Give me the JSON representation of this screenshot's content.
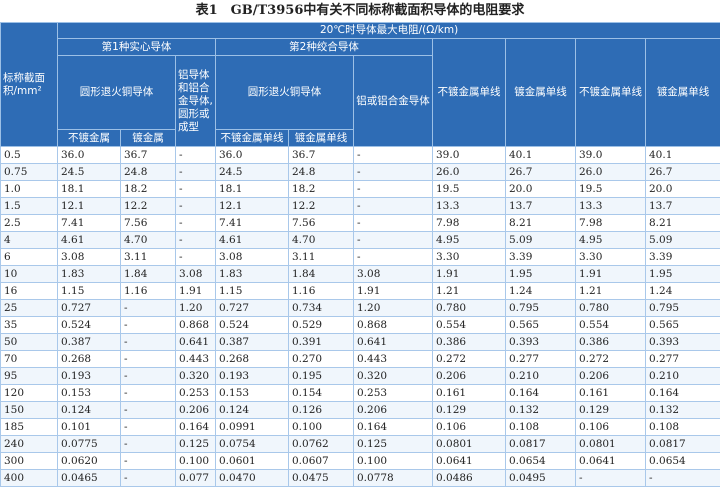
{
  "title": "表1　GB/T3956中有关不同标称截面积导体的电阻要求",
  "header": {
    "section": "标称截面积/mm²",
    "resistance": "20℃时导体最大电阻/(Ω/km)",
    "class1": "第1种实心导体",
    "class2": "第2种绞合导体",
    "copper1": "圆形退火铜导体",
    "aluminium1": "铝导体和铝合金导体,圆形或成型",
    "copper2": "圆形退火铜导体",
    "aluminium2": "铝或铝合金导体",
    "plain1": "不镀金属",
    "metal1": "镀金属",
    "plain2": "不镀金属单线",
    "metal2": "镀金属单线",
    "plain3": "不镀金属单线",
    "metal3": "镀金属单线",
    "plain4": "不镀金属单线",
    "metal4": "镀金属单线"
  },
  "table": {
    "rows": [
      [
        "0.5",
        "36.0",
        "36.7",
        "-",
        "36.0",
        "36.7",
        "-",
        "39.0",
        "40.1",
        "39.0",
        "40.1"
      ],
      [
        "0.75",
        "24.5",
        "24.8",
        "-",
        "24.5",
        "24.8",
        "-",
        "26.0",
        "26.7",
        "26.0",
        "26.7"
      ],
      [
        "1.0",
        "18.1",
        "18.2",
        "-",
        "18.1",
        "18.2",
        "-",
        "19.5",
        "20.0",
        "19.5",
        "20.0"
      ],
      [
        "1.5",
        "12.1",
        "12.2",
        "-",
        "12.1",
        "12.2",
        "-",
        "13.3",
        "13.7",
        "13.3",
        "13.7"
      ],
      [
        "2.5",
        "7.41",
        "7.56",
        "-",
        "7.41",
        "7.56",
        "-",
        "7.98",
        "8.21",
        "7.98",
        "8.21"
      ],
      [
        "4",
        "4.61",
        "4.70",
        "-",
        "4.61",
        "4.70",
        "-",
        "4.95",
        "5.09",
        "4.95",
        "5.09"
      ],
      [
        "6",
        "3.08",
        "3.11",
        "-",
        "3.08",
        "3.11",
        "-",
        "3.30",
        "3.39",
        "3.30",
        "3.39"
      ],
      [
        "10",
        "1.83",
        "1.84",
        "3.08",
        "1.83",
        "1.84",
        "3.08",
        "1.91",
        "1.95",
        "1.91",
        "1.95"
      ],
      [
        "16",
        "1.15",
        "1.16",
        "1.91",
        "1.15",
        "1.16",
        "1.91",
        "1.21",
        "1.24",
        "1.21",
        "1.24"
      ],
      [
        "25",
        "0.727",
        "-",
        "1.20",
        "0.727",
        "0.734",
        "1.20",
        "0.780",
        "0.795",
        "0.780",
        "0.795"
      ],
      [
        "35",
        "0.524",
        "-",
        "0.868",
        "0.524",
        "0.529",
        "0.868",
        "0.554",
        "0.565",
        "0.554",
        "0.565"
      ],
      [
        "50",
        "0.387",
        "-",
        "0.641",
        "0.387",
        "0.391",
        "0.641",
        "0.386",
        "0.393",
        "0.386",
        "0.393"
      ],
      [
        "70",
        "0.268",
        "-",
        "0.443",
        "0.268",
        "0.270",
        "0.443",
        "0.272",
        "0.277",
        "0.272",
        "0.277"
      ],
      [
        "95",
        "0.193",
        "-",
        "0.320",
        "0.193",
        "0.195",
        "0.320",
        "0.206",
        "0.210",
        "0.206",
        "0.210"
      ],
      [
        "120",
        "0.153",
        "-",
        "0.253",
        "0.153",
        "0.154",
        "0.253",
        "0.161",
        "0.164",
        "0.161",
        "0.164"
      ],
      [
        "150",
        "0.124",
        "-",
        "0.206",
        "0.124",
        "0.126",
        "0.206",
        "0.129",
        "0.132",
        "0.129",
        "0.132"
      ],
      [
        "185",
        "0.101",
        "-",
        "0.164",
        "0.0991",
        "0.100",
        "0.164",
        "0.106",
        "0.108",
        "0.106",
        "0.108"
      ],
      [
        "240",
        "0.0775",
        "-",
        "0.125",
        "0.0754",
        "0.0762",
        "0.125",
        "0.0801",
        "0.0817",
        "0.0801",
        "0.0817"
      ],
      [
        "300",
        "0.0620",
        "-",
        "0.100",
        "0.0601",
        "0.0607",
        "0.100",
        "0.0641",
        "0.0654",
        "0.0641",
        "0.0654"
      ],
      [
        "400",
        "0.0465",
        "-",
        "0.077",
        "0.0470",
        "0.0475",
        "0.0778",
        "0.0486",
        "0.0495",
        "-",
        "-"
      ]
    ]
  }
}
